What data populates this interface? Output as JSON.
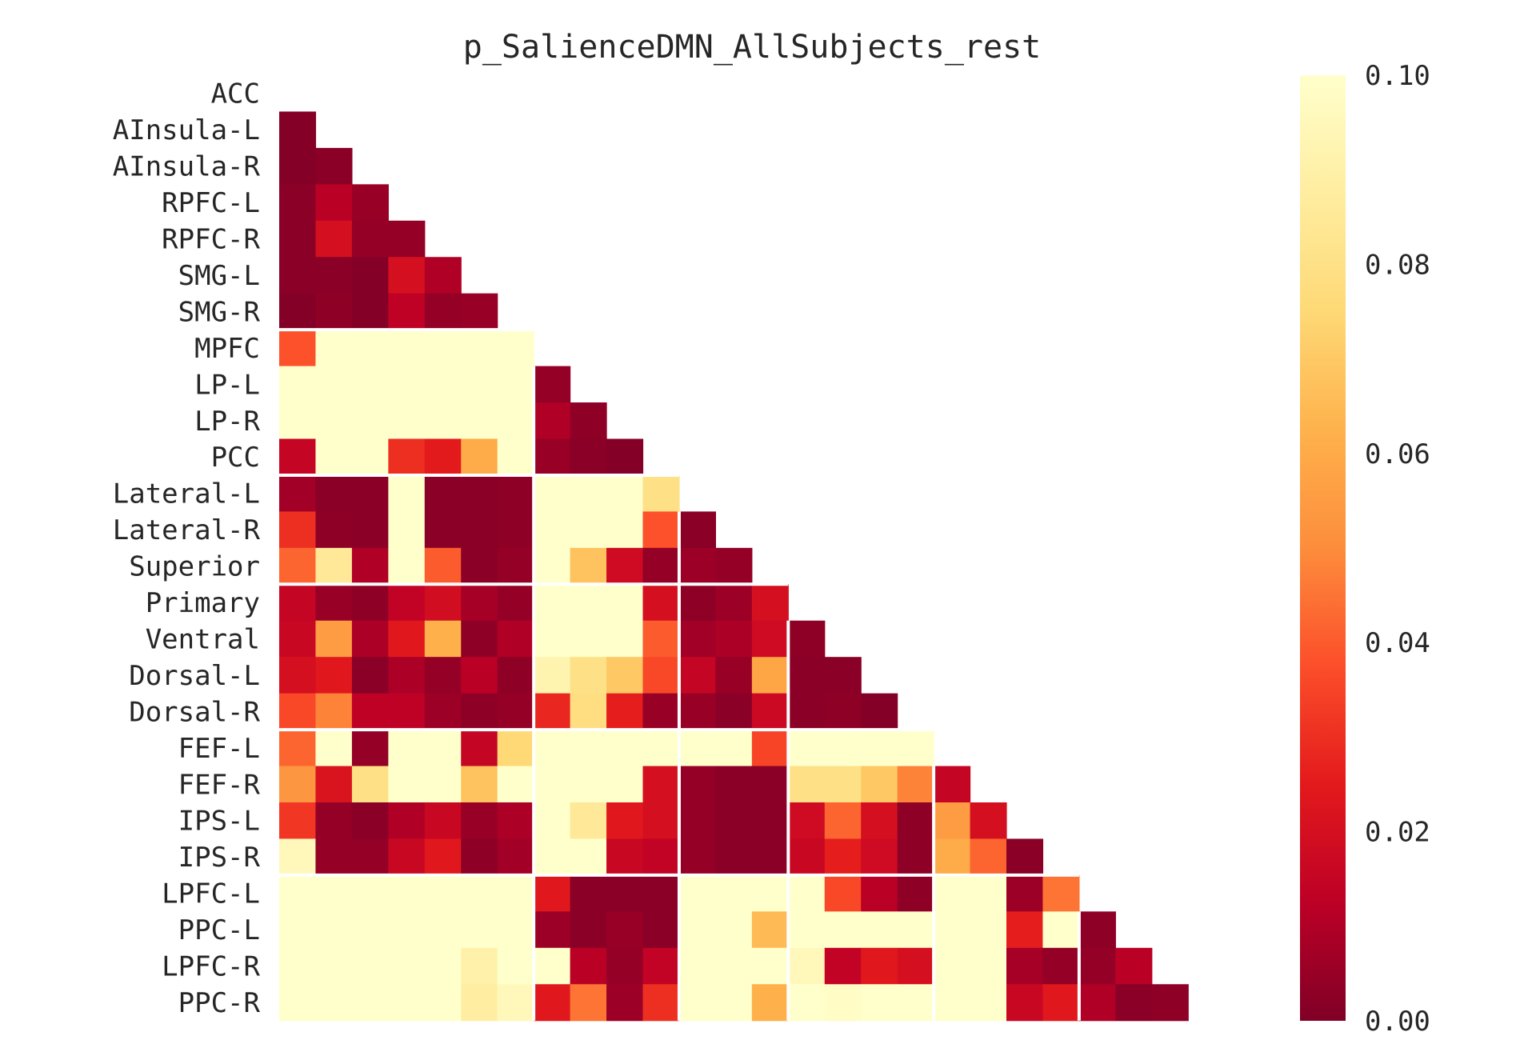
{
  "chart_data": {
    "type": "heatmap",
    "title": "p_SalienceDMN_AllSubjects_rest",
    "labels": [
      "ACC",
      "AInsula-L",
      "AInsula-R",
      "RPFC-L",
      "RPFC-R",
      "SMG-L",
      "SMG-R",
      "MPFC",
      "LP-L",
      "LP-R",
      "PCC",
      "Lateral-L",
      "Lateral-R",
      "Superior",
      "Primary",
      "Ventral",
      "Dorsal-L",
      "Dorsal-R",
      "FEF-L",
      "FEF-R",
      "IPS-L",
      "IPS-R",
      "LPFC-L",
      "PPC-L",
      "LPFC-R",
      "PPC-R"
    ],
    "mask": "lower-triangle",
    "colormap": "YlOrRd_r",
    "vmin": 0.0,
    "vmax": 0.1,
    "colorbar_ticks": [
      "0.00",
      "0.02",
      "0.04",
      "0.06",
      "0.08",
      "0.10"
    ],
    "network_boundaries_after_index": [
      6,
      10,
      13,
      17,
      21
    ],
    "values": [
      [],
      [
        0.001
      ],
      [
        0.001,
        0.002
      ],
      [
        0.002,
        0.012,
        0.005
      ],
      [
        0.002,
        0.02,
        0.004,
        0.004
      ],
      [
        0.002,
        0.002,
        0.001,
        0.02,
        0.01
      ],
      [
        0.001,
        0.003,
        0.001,
        0.013,
        0.004,
        0.005
      ],
      [
        0.038,
        0.1,
        0.1,
        0.1,
        0.1,
        0.1,
        0.1
      ],
      [
        0.1,
        0.1,
        0.1,
        0.1,
        0.1,
        0.1,
        0.1,
        0.004
      ],
      [
        0.1,
        0.1,
        0.1,
        0.1,
        0.1,
        0.1,
        0.1,
        0.01,
        0.003
      ],
      [
        0.015,
        0.1,
        0.1,
        0.03,
        0.025,
        0.06,
        0.1,
        0.005,
        0.002,
        0.001
      ],
      [
        0.007,
        0.002,
        0.002,
        0.1,
        0.002,
        0.002,
        0.003,
        0.1,
        0.1,
        0.1,
        0.08
      ],
      [
        0.03,
        0.003,
        0.002,
        0.1,
        0.002,
        0.002,
        0.003,
        0.1,
        0.1,
        0.1,
        0.038,
        0.002
      ],
      [
        0.042,
        0.085,
        0.01,
        0.1,
        0.04,
        0.002,
        0.004,
        0.1,
        0.068,
        0.018,
        0.004,
        0.006,
        0.004
      ],
      [
        0.015,
        0.005,
        0.003,
        0.014,
        0.019,
        0.008,
        0.004,
        0.1,
        0.1,
        0.1,
        0.02,
        0.003,
        0.006,
        0.02
      ],
      [
        0.016,
        0.055,
        0.009,
        0.024,
        0.062,
        0.003,
        0.01,
        0.1,
        0.1,
        0.1,
        0.04,
        0.007,
        0.009,
        0.018,
        0.003
      ],
      [
        0.02,
        0.024,
        0.002,
        0.009,
        0.004,
        0.012,
        0.003,
        0.092,
        0.08,
        0.07,
        0.036,
        0.015,
        0.005,
        0.058,
        0.002,
        0.002
      ],
      [
        0.036,
        0.048,
        0.013,
        0.013,
        0.006,
        0.003,
        0.004,
        0.028,
        0.078,
        0.026,
        0.005,
        0.005,
        0.002,
        0.017,
        0.002,
        0.003,
        0.001
      ],
      [
        0.042,
        0.1,
        0.004,
        0.1,
        0.1,
        0.015,
        0.075,
        0.1,
        0.1,
        0.1,
        0.1,
        0.1,
        0.1,
        0.035,
        0.1,
        0.1,
        0.1,
        0.1
      ],
      [
        0.053,
        0.022,
        0.08,
        0.1,
        0.1,
        0.068,
        0.1,
        0.1,
        0.1,
        0.1,
        0.02,
        0.004,
        0.002,
        0.002,
        0.08,
        0.08,
        0.07,
        0.048,
        0.015
      ],
      [
        0.032,
        0.004,
        0.002,
        0.01,
        0.016,
        0.005,
        0.009,
        0.1,
        0.085,
        0.024,
        0.02,
        0.004,
        0.002,
        0.002,
        0.018,
        0.042,
        0.02,
        0.003,
        0.055,
        0.02
      ],
      [
        0.095,
        0.004,
        0.004,
        0.016,
        0.024,
        0.003,
        0.007,
        0.1,
        0.1,
        0.016,
        0.014,
        0.004,
        0.002,
        0.002,
        0.016,
        0.026,
        0.018,
        0.003,
        0.06,
        0.042,
        0.002
      ],
      [
        0.1,
        0.1,
        0.1,
        0.1,
        0.1,
        0.1,
        0.1,
        0.024,
        0.002,
        0.002,
        0.002,
        0.1,
        0.1,
        0.1,
        0.1,
        0.036,
        0.012,
        0.003,
        0.1,
        0.1,
        0.006,
        0.045
      ],
      [
        0.1,
        0.1,
        0.1,
        0.1,
        0.1,
        0.1,
        0.1,
        0.006,
        0.002,
        0.005,
        0.002,
        0.1,
        0.1,
        0.065,
        0.1,
        0.1,
        0.1,
        0.1,
        0.1,
        0.1,
        0.026,
        0.1,
        0.003
      ],
      [
        0.1,
        0.1,
        0.1,
        0.1,
        0.1,
        0.09,
        0.1,
        0.1,
        0.012,
        0.004,
        0.014,
        0.1,
        0.1,
        0.1,
        0.095,
        0.014,
        0.024,
        0.02,
        0.1,
        0.1,
        0.008,
        0.004,
        0.004,
        0.012
      ],
      [
        0.1,
        0.1,
        0.1,
        0.1,
        0.1,
        0.088,
        0.095,
        0.024,
        0.045,
        0.006,
        0.03,
        0.1,
        0.1,
        0.062,
        0.1,
        0.098,
        0.1,
        0.1,
        0.1,
        0.1,
        0.016,
        0.024,
        0.01,
        0.002,
        0.003
      ]
    ]
  }
}
